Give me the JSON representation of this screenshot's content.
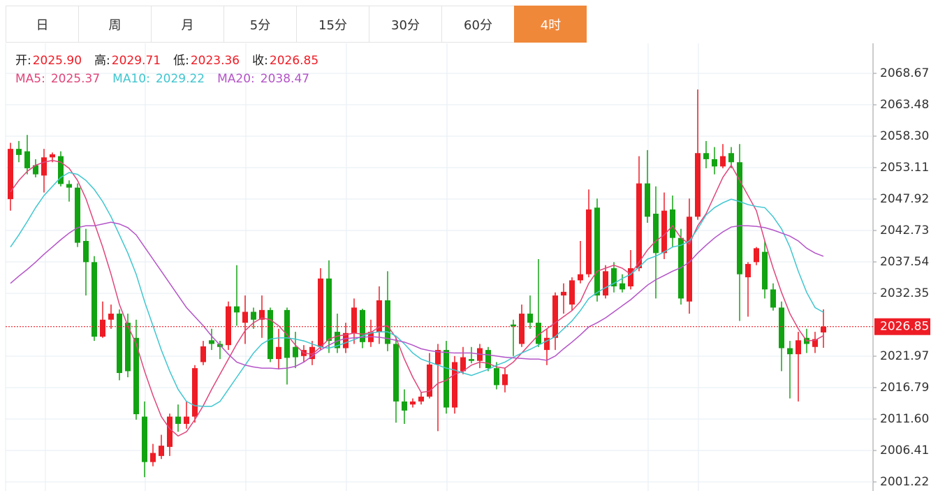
{
  "tabs": [
    "日",
    "周",
    "月",
    "5分",
    "15分",
    "30分",
    "60分",
    "4时"
  ],
  "active_tab": 7,
  "chart_data": {
    "type": "candlestick",
    "header": [
      {
        "label": "开:",
        "value": "2025.90"
      },
      {
        "label": "高:",
        "value": "2029.71"
      },
      {
        "label": "低:",
        "value": "2023.36"
      },
      {
        "label": "收:",
        "value": "2026.85"
      }
    ],
    "up_color": "#ee1c25",
    "down_color": "#12a312",
    "ylim": [
      1999.72,
      2073.63
    ],
    "yticks": [
      2068.67,
      2063.48,
      {
        "value": 2058.3,
        "label": "2058.30"
      },
      2053.11,
      2047.92,
      2042.73,
      2037.54,
      2032.35,
      2021.97,
      2016.79,
      {
        "value": 2011.6,
        "label": "2011.60"
      },
      2006.41,
      2001.22
    ],
    "last_price": 2026.85,
    "open": [
      2047.9,
      2056.2,
      2055.8,
      2053.5,
      2051.8,
      2054.8,
      2055.0,
      2050.4,
      2049.8,
      2041.0,
      2037.5,
      2025.2,
      2028.0,
      2029.0,
      2027.5,
      2025.0,
      2012.0,
      2004.5,
      2005.5,
      2007.0,
      2012.0,
      2010.8,
      2012.0,
      2021.0,
      2024.6,
      2024.0,
      2023.8,
      2030.2,
      2027.5,
      2029.3,
      2028.0,
      2029.6,
      2021.5,
      2029.6,
      2023.5,
      2022.0,
      2021.5,
      2023.5,
      2034.8,
      2026.0,
      2023.3,
      2025.8,
      2029.6,
      2024.3,
      2026.0,
      2031.2,
      2024.0,
      2014.5,
      2014.0,
      2014.5,
      2015.3,
      2020.6,
      2023.0,
      2013.5,
      2019.5,
      2021.5,
      2021.2,
      2023.0,
      2020.0,
      2017.2,
      2027.2,
      2024.0,
      2029.0,
      2027.5,
      2023.0,
      2025.0,
      2032.0,
      2030.5,
      2034.5,
      2035.5,
      2046.5,
      2032.0,
      2036.5,
      2034.0,
      2033.5,
      2036.5,
      2050.5,
      2045.5,
      2039.0,
      2046.2,
      2041.5,
      2031.0,
      2045.0,
      2055.5,
      2054.5,
      2053.3,
      2055.5,
      2054.0,
      2035.0,
      2037.5,
      2039.2,
      2033.0,
      2030.0,
      2023.3,
      2022.3,
      2025.0,
      2023.5,
      2025.9
    ],
    "high": [
      2057.2,
      2057.5,
      2058.5,
      2054.5,
      2056.2,
      2055.6,
      2055.8,
      2051.0,
      2050.5,
      2043.0,
      2038.5,
      2031.0,
      2030.5,
      2029.7,
      2029.0,
      2028.0,
      2014.5,
      2007.5,
      2009.0,
      2012.5,
      2014.0,
      2014.5,
      2020.5,
      2024.5,
      2026.5,
      2024.5,
      2031.0,
      2037.0,
      2032.0,
      2030.0,
      2032.0,
      2030.0,
      2026.5,
      2030.0,
      2026.0,
      2023.8,
      2024.5,
      2036.5,
      2037.8,
      2029.0,
      2027.5,
      2031.5,
      2029.8,
      2028.0,
      2033.5,
      2036.0,
      2025.0,
      2016.5,
      2015.0,
      2016.0,
      2022.5,
      2024.0,
      2024.5,
      2022.0,
      2023.5,
      2023.5,
      2024.0,
      2023.5,
      2021.0,
      2020.0,
      2028.0,
      2030.5,
      2032.0,
      2038.0,
      2026.5,
      2032.5,
      2034.0,
      2035.0,
      2041.0,
      2049.5,
      2048.0,
      2037.0,
      2037.5,
      2035.5,
      2039.5,
      2055.0,
      2056.0,
      2050.0,
      2049.0,
      2048.5,
      2043.0,
      2048.0,
      2066.0,
      2057.5,
      2056.5,
      2057.0,
      2056.5,
      2057.0,
      2037.5,
      2040.0,
      2041.0,
      2034.0,
      2031.0,
      2024.5,
      2026.0,
      2026.5,
      2026.0,
      2029.71
    ],
    "low": [
      2046.0,
      2054.0,
      2052.0,
      2051.5,
      2049.0,
      2054.0,
      2050.0,
      2047.5,
      2040.0,
      2032.0,
      2024.5,
      2025.0,
      2026.5,
      2018.0,
      2018.5,
      2011.5,
      2002.0,
      2003.8,
      2005.0,
      2005.5,
      2009.5,
      2010.0,
      2011.0,
      2020.5,
      2023.0,
      2021.5,
      2023.0,
      2027.0,
      2024.0,
      2026.5,
      2025.0,
      2021.0,
      2019.8,
      2017.3,
      2020.0,
      2021.0,
      2020.5,
      2023.0,
      2022.5,
      2022.5,
      2022.5,
      2024.0,
      2023.3,
      2023.5,
      2024.0,
      2022.8,
      2011.0,
      2010.8,
      2013.5,
      2014.0,
      2015.0,
      2009.6,
      2012.5,
      2012.5,
      2019.0,
      2020.8,
      2020.0,
      2019.5,
      2016.5,
      2016.0,
      2022.0,
      2023.5,
      2026.5,
      2023.5,
      2020.5,
      2023.0,
      2029.0,
      2029.5,
      2034.0,
      2035.0,
      2031.0,
      2031.5,
      2032.5,
      2032.5,
      2033.0,
      2036.0,
      2044.0,
      2031.5,
      2038.0,
      2040.0,
      2030.5,
      2029.0,
      2044.5,
      2053.0,
      2052.0,
      2053.0,
      2053.0,
      2027.8,
      2028.5,
      2037.0,
      2031.5,
      2029.5,
      2019.5,
      2015.0,
      2014.5,
      2022.5,
      2022.5,
      2023.36
    ],
    "close": [
      2056.2,
      2055.2,
      2053.0,
      2052.0,
      2054.8,
      2055.3,
      2050.4,
      2049.8,
      2040.7,
      2037.5,
      2025.2,
      2028.0,
      2029.0,
      2019.2,
      2019.5,
      2012.4,
      2004.5,
      2006.0,
      2007.2,
      2012.0,
      2010.8,
      2012.0,
      2020.0,
      2023.6,
      2024.0,
      2023.5,
      2030.2,
      2029.2,
      2029.3,
      2028.0,
      2029.6,
      2021.5,
      2023.5,
      2021.7,
      2021.8,
      2023.0,
      2023.5,
      2034.8,
      2024.5,
      2023.3,
      2025.8,
      2030.0,
      2024.3,
      2026.0,
      2031.2,
      2024.0,
      2014.5,
      2013.0,
      2014.5,
      2015.3,
      2020.6,
      2023.0,
      2013.5,
      2021.0,
      2021.8,
      2021.2,
      2023.3,
      2020.0,
      2017.2,
      2019.0,
      2026.9,
      2029.0,
      2027.5,
      2024.0,
      2025.0,
      2032.0,
      2032.6,
      2034.5,
      2035.5,
      2046.2,
      2032.0,
      2036.0,
      2033.5,
      2033.0,
      2036.5,
      2050.5,
      2045.0,
      2039.0,
      2046.0,
      2041.5,
      2031.5,
      2045.0,
      2055.5,
      2054.5,
      2053.3,
      2055.0,
      2054.0,
      2035.5,
      2037.2,
      2039.8,
      2033.0,
      2030.0,
      2023.3,
      2022.3,
      2024.6,
      2024.0,
      2024.8,
      2026.85
    ],
    "series": [
      {
        "name": "MA5:",
        "color": "#e0457b",
        "current": "2025.37",
        "values": [
          2049.1,
          2051.0,
          2052.5,
          2053.5,
          2054.0,
          2054.3,
          2054.0,
          2053.0,
          2051.0,
          2048.0,
          2044.0,
          2040.0,
          2035.5,
          2030.5,
          2027.0,
          2024.0,
          2019.5,
          2015.5,
          2012.0,
          2010.0,
          2008.8,
          2009.5,
          2011.5,
          2013.8,
          2016.5,
          2019.0,
          2021.5,
          2024.0,
          2026.2,
          2027.5,
          2028.3,
          2028.0,
          2027.0,
          2025.5,
          2023.8,
          2022.5,
          2022.3,
          2023.5,
          2024.8,
          2025.3,
          2025.5,
          2025.8,
          2025.6,
          2025.9,
          2026.8,
          2027.0,
          2025.0,
          2021.5,
          2018.5,
          2016.0,
          2016.2,
          2017.5,
          2018.0,
          2019.0,
          2019.5,
          2020.5,
          2021.0,
          2020.8,
          2020.2,
          2020.0,
          2021.0,
          2022.5,
          2024.0,
          2025.5,
          2026.5,
          2027.5,
          2028.5,
          2029.5,
          2031.0,
          2034.0,
          2036.0,
          2036.5,
          2037.0,
          2036.5,
          2035.5,
          2037.5,
          2039.5,
          2041.0,
          2042.0,
          2043.5,
          2041.5,
          2040.5,
          2043.5,
          2045.5,
          2048.5,
          2051.5,
          2053.5,
          2051.0,
          2048.5,
          2046.0,
          2041.0,
          2036.5,
          2032.5,
          2029.0,
          2026.5,
          2024.5,
          2024.6,
          2025.37
        ]
      },
      {
        "name": "MA10:",
        "color": "#3fc6d0",
        "current": "2029.22",
        "values": [
          2040.0,
          2042.0,
          2044.2,
          2046.5,
          2048.5,
          2050.0,
          2051.5,
          2052.3,
          2052.0,
          2051.0,
          2049.5,
          2047.5,
          2045.0,
          2042.0,
          2039.0,
          2035.5,
          2031.0,
          2027.0,
          2023.0,
          2019.5,
          2016.5,
          2014.5,
          2013.8,
          2013.7,
          2013.7,
          2014.5,
          2016.5,
          2018.5,
          2020.5,
          2022.5,
          2024.0,
          2024.8,
          2025.0,
          2025.0,
          2024.8,
          2024.5,
          2024.0,
          2023.5,
          2023.3,
          2023.7,
          2024.2,
          2024.7,
          2025.3,
          2025.8,
          2026.0,
          2026.0,
          2025.3,
          2024.0,
          2022.5,
          2021.5,
          2021.0,
          2020.5,
          2020.0,
          2019.7,
          2019.2,
          2018.8,
          2019.3,
          2019.8,
          2020.5,
          2021.0,
          2021.8,
          2022.5,
          2023.1,
          2023.8,
          2024.5,
          2025.2,
          2026.5,
          2027.8,
          2029.5,
          2031.5,
          2032.5,
          2033.3,
          2034.0,
          2034.8,
          2035.5,
          2036.7,
          2038.0,
          2038.5,
          2039.2,
          2040.0,
          2040.3,
          2041.0,
          2043.0,
          2045.3,
          2046.5,
          2047.3,
          2047.9,
          2047.5,
          2047.0,
          2046.7,
          2046.5,
          2045.0,
          2043.0,
          2040.0,
          2036.0,
          2032.5,
          2030.0,
          2029.22
        ]
      },
      {
        "name": "MA20:",
        "color": "#b454c8",
        "current": "2038.47",
        "values": [
          2034.0,
          2035.2,
          2036.3,
          2037.5,
          2038.8,
          2040.0,
          2041.2,
          2042.3,
          2043.2,
          2043.5,
          2043.5,
          2043.8,
          2044.1,
          2043.8,
          2043.2,
          2042.0,
          2040.0,
          2038.0,
          2036.0,
          2034.0,
          2032.0,
          2030.0,
          2028.5,
          2027.0,
          2025.3,
          2023.8,
          2022.3,
          2021.0,
          2020.5,
          2020.2,
          2020.0,
          2020.0,
          2019.9,
          2020.0,
          2020.3,
          2021.0,
          2022.0,
          2023.0,
          2023.8,
          2024.5,
          2024.9,
          2025.0,
          2025.1,
          2025.2,
          2025.1,
          2024.9,
          2024.6,
          2024.3,
          2023.8,
          2023.2,
          2022.9,
          2022.7,
          2022.6,
          2022.5,
          2022.5,
          2022.5,
          2022.3,
          2022.2,
          2022.0,
          2021.8,
          2021.7,
          2021.6,
          2021.5,
          2021.5,
          2021.3,
          2022.0,
          2023.2,
          2024.3,
          2025.5,
          2026.8,
          2027.5,
          2028.3,
          2029.3,
          2030.3,
          2031.3,
          2032.5,
          2033.7,
          2034.6,
          2035.3,
          2036.0,
          2036.6,
          2037.5,
          2039.0,
          2040.3,
          2041.5,
          2042.5,
          2043.3,
          2043.5,
          2043.5,
          2043.4,
          2043.2,
          2042.8,
          2042.3,
          2041.8,
          2041.0,
          2039.8,
          2039.0,
          2038.47
        ]
      }
    ]
  }
}
